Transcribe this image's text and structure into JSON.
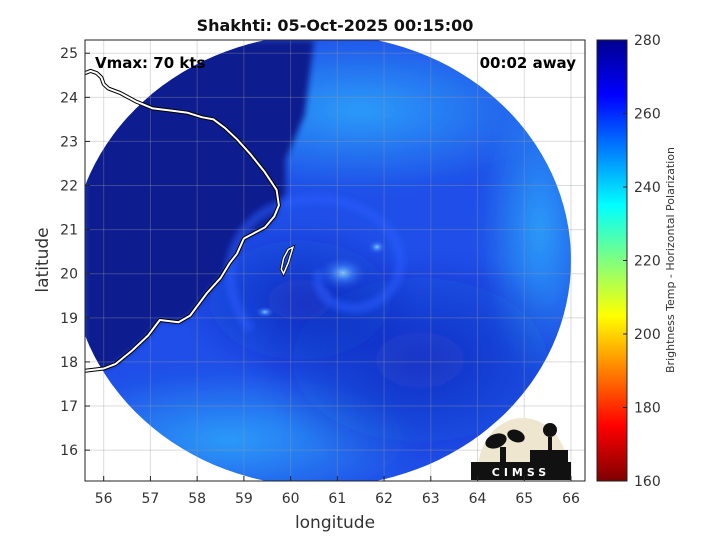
{
  "title": "Shakhti: 05-Oct-2025 00:15:00",
  "vmax_label": "Vmax: 70 kts",
  "time_label": "00:02 away",
  "chart_data": {
    "type": "heatmap",
    "title": "Shakhti: 05-Oct-2025 00:15:00",
    "xlabel": "longitude",
    "ylabel": "latitude",
    "xlim": [
      55.6,
      66.3
    ],
    "ylim": [
      15.3,
      25.3
    ],
    "x_ticks": [
      56,
      57,
      58,
      59,
      60,
      61,
      62,
      63,
      64,
      65,
      66
    ],
    "y_ticks": [
      16,
      17,
      18,
      19,
      20,
      21,
      22,
      23,
      24,
      25
    ],
    "grid": true,
    "swath_center": [
      60.65,
      20.3
    ],
    "eye_center": [
      60.9,
      20.5
    ],
    "colorbar": {
      "label": "Brightness Temp - Horizontal Polarization",
      "min": 160,
      "max": 280,
      "ticks": [
        160,
        180,
        200,
        220,
        240,
        260,
        280
      ],
      "colors": [
        "#7f0000",
        "#ff0000",
        "#ff8000",
        "#ffff00",
        "#80ff80",
        "#00ffff",
        "#0080ff",
        "#0000ff",
        "#00008f"
      ]
    },
    "coastline": [
      [
        55.6,
        24.55
      ],
      [
        55.72,
        24.6
      ],
      [
        55.85,
        24.55
      ],
      [
        55.95,
        24.45
      ],
      [
        56.0,
        24.3
      ],
      [
        56.1,
        24.2
      ],
      [
        56.35,
        24.1
      ],
      [
        56.7,
        23.9
      ],
      [
        57.05,
        23.75
      ],
      [
        57.45,
        23.7
      ],
      [
        57.8,
        23.65
      ],
      [
        58.1,
        23.55
      ],
      [
        58.35,
        23.5
      ],
      [
        58.6,
        23.3
      ],
      [
        58.85,
        23.05
      ],
      [
        59.15,
        22.7
      ],
      [
        59.45,
        22.3
      ],
      [
        59.7,
        21.9
      ],
      [
        59.75,
        21.55
      ],
      [
        59.65,
        21.3
      ],
      [
        59.45,
        21.05
      ],
      [
        59.0,
        20.8
      ],
      [
        58.85,
        20.45
      ],
      [
        58.7,
        20.25
      ],
      [
        58.5,
        19.9
      ],
      [
        58.2,
        19.55
      ],
      [
        57.85,
        19.05
      ],
      [
        57.6,
        18.9
      ],
      [
        57.2,
        18.95
      ],
      [
        56.95,
        18.6
      ],
      [
        56.6,
        18.25
      ],
      [
        56.25,
        17.95
      ],
      [
        56.0,
        17.85
      ],
      [
        55.6,
        17.8
      ]
    ],
    "island": [
      [
        59.85,
        20.0
      ],
      [
        59.95,
        20.25
      ],
      [
        60.05,
        20.6
      ],
      [
        59.95,
        20.55
      ],
      [
        59.85,
        20.35
      ],
      [
        59.8,
        20.1
      ],
      [
        59.85,
        20.0
      ]
    ]
  }
}
